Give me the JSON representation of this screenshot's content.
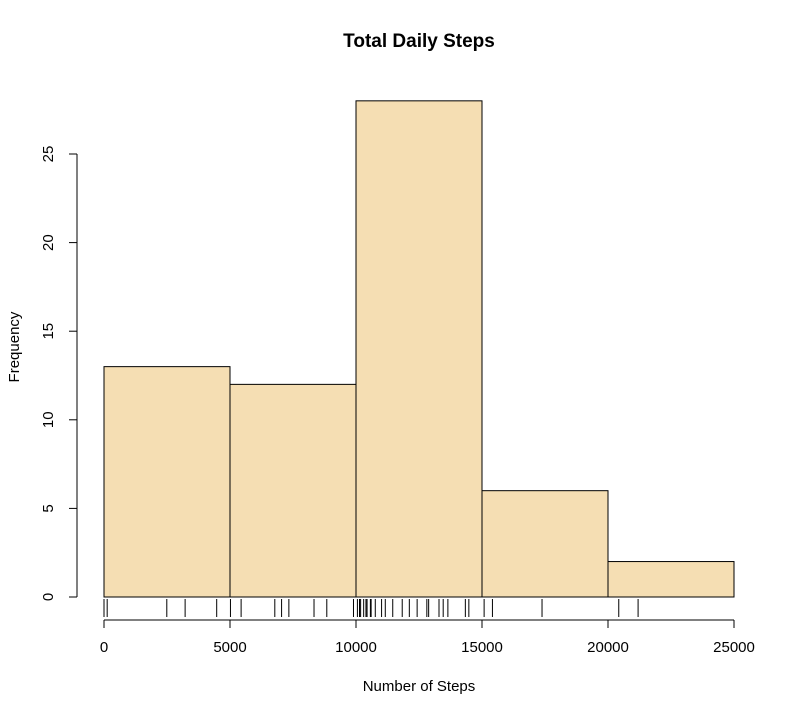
{
  "chart_data": {
    "type": "bar",
    "title": "Total Daily Steps",
    "xlabel": "Number of Steps",
    "ylabel": "Frequency",
    "bins": [
      {
        "start": 0,
        "end": 5000,
        "count": 13
      },
      {
        "start": 5000,
        "end": 10000,
        "count": 12
      },
      {
        "start": 10000,
        "end": 15000,
        "count": 28
      },
      {
        "start": 15000,
        "end": 20000,
        "count": 6
      },
      {
        "start": 20000,
        "end": 25000,
        "count": 2
      }
    ],
    "xlim": [
      0,
      25000
    ],
    "ylim": [
      0,
      28
    ],
    "x_ticks": [
      0,
      5000,
      10000,
      15000,
      20000,
      25000
    ],
    "x_tick_labels": [
      "0",
      "5000",
      "10000",
      "15000",
      "20000",
      "25000"
    ],
    "y_ticks": [
      0,
      5,
      10,
      15,
      20,
      25
    ],
    "y_tick_labels": [
      "0",
      "5",
      "10",
      "15",
      "20",
      "25"
    ],
    "rug": [
      0,
      126,
      2492,
      3219,
      4472,
      5018,
      5441,
      6778,
      7047,
      7336,
      8334,
      8841,
      9900,
      10056,
      10139,
      10183,
      10304,
      10395,
      10439,
      10571,
      10600,
      10765,
      11015,
      11162,
      11458,
      11834,
      12116,
      12426,
      12811,
      12883,
      13294,
      13460,
      13646,
      14339,
      14478,
      15084,
      15414,
      17382,
      20427,
      21194
    ],
    "bar_fill": "#f5deb3",
    "bar_stroke": "#000000",
    "grid": false,
    "legend": "none"
  }
}
